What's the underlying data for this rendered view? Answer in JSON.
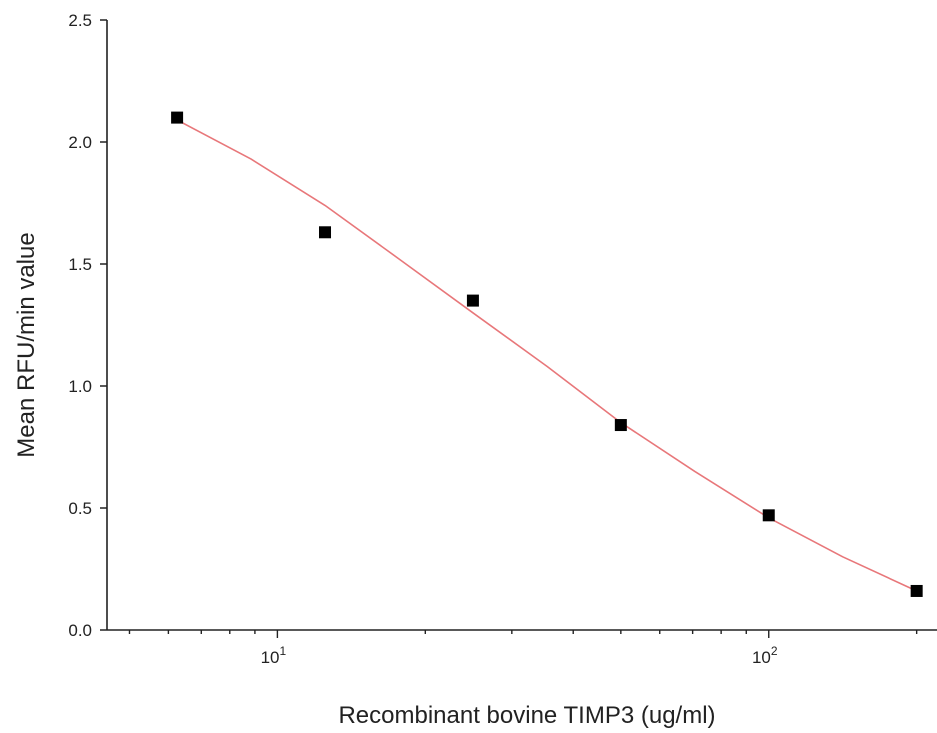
{
  "chart_data": {
    "type": "scatter",
    "title": "",
    "xlabel": "Recombinant bovine TIMP3 (ug/ml)",
    "ylabel": "Mean RFU/min value",
    "xscale": "log",
    "xlim": [
      4.5,
      220
    ],
    "ylim": [
      0,
      2.5
    ],
    "y_ticks": [
      "0.0",
      "0.5",
      "1.0",
      "1.5",
      "2.0",
      "2.5"
    ],
    "x_ticks": [
      {
        "value": 10,
        "base": "10",
        "exp": "1"
      },
      {
        "value": 100,
        "base": "10",
        "exp": "2"
      }
    ],
    "grid": false,
    "legend": "none",
    "series": [
      {
        "marker": "square",
        "color": "#000000",
        "x": [
          6.25,
          12.5,
          25,
          50,
          100,
          200
        ],
        "y": [
          2.1,
          1.63,
          1.35,
          0.84,
          0.47,
          0.16
        ]
      }
    ],
    "fit_curve": {
      "color": "#e8777a",
      "x": [
        6.25,
        8.84,
        12.5,
        17.7,
        25,
        35.4,
        50,
        70.7,
        100,
        141.4,
        200
      ],
      "y": [
        2.09,
        1.93,
        1.74,
        1.52,
        1.3,
        1.08,
        0.85,
        0.65,
        0.46,
        0.3,
        0.16
      ]
    }
  }
}
